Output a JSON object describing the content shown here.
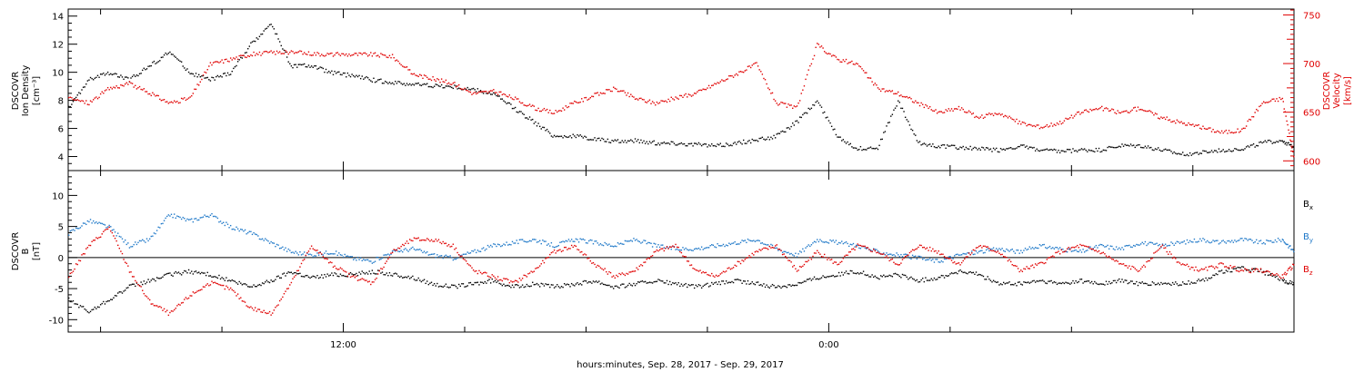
{
  "chart_data": [
    {
      "type": "scatter",
      "xlabel": "hours:minutes, Sep. 28, 2017 - Sep. 29, 2017",
      "x_ticks": [
        "12:00",
        "0:00"
      ],
      "x_hours_range": [
        -6.8,
        23.5
      ],
      "left_axis": {
        "label_lines": [
          "DSCOVR",
          "Ion Density",
          "[cm⁻³]"
        ],
        "ylim": [
          3,
          14.5
        ],
        "ticks": [
          "4",
          "6",
          "8",
          "10",
          "12",
          "14"
        ]
      },
      "right_axis": {
        "label_lines": [
          "DSCOVR",
          "Velocity",
          "[km/s]"
        ],
        "ylim": [
          590,
          756
        ],
        "ticks": [
          "600",
          "650",
          "700",
          "750"
        ],
        "color": "#e00000"
      },
      "series": [
        {
          "axis": "left",
          "color": "#000000",
          "x": [
            -6.8,
            -6.3,
            -5.8,
            -5.3,
            -4.8,
            -4.3,
            -3.8,
            -3.3,
            -2.8,
            -2.3,
            -1.8,
            -1.3,
            -0.8,
            -0.3,
            0.2,
            0.7,
            1.2,
            1.7,
            2.2,
            2.7,
            3.2,
            3.7,
            4.2,
            4.7,
            5.2,
            5.7,
            6.2,
            6.7,
            7.2,
            7.7,
            8.2,
            8.7,
            9.2,
            9.7,
            10.2,
            10.7,
            11.2,
            11.7,
            12.2,
            12.7,
            13.2,
            13.7,
            14.2,
            14.7,
            15.2,
            15.7,
            16.2,
            16.7,
            17.2,
            17.7,
            18.2,
            18.7,
            19.2,
            19.7,
            20.2,
            20.7,
            21.2,
            21.7,
            22.2,
            22.7,
            23.2,
            23.5
          ],
          "y": [
            7.5,
            9.5,
            10,
            9.5,
            10.5,
            11.5,
            10,
            9.5,
            10,
            12,
            13.5,
            10.5,
            10.5,
            10,
            9.8,
            9.5,
            9.3,
            9.2,
            9.1,
            9,
            8.8,
            8.5,
            7.5,
            6.5,
            5.5,
            5.5,
            5.3,
            5.1,
            5.2,
            5,
            5,
            4.9,
            4.8,
            5,
            5.2,
            5.5,
            6.5,
            8,
            5.5,
            4.6,
            4.7,
            8,
            5,
            4.8,
            4.7,
            4.6,
            4.5,
            4.8,
            4.5,
            4.4,
            4.5,
            4.5,
            4.8,
            4.8,
            4.5,
            4.2,
            4.3,
            4.5,
            4.6,
            5,
            5.2,
            4.6
          ]
        },
        {
          "axis": "right",
          "color": "#e00000",
          "x": [
            -6.8,
            -6.3,
            -5.8,
            -5.3,
            -4.8,
            -4.3,
            -3.8,
            -3.3,
            -2.8,
            -2.3,
            -1.8,
            -1.3,
            -0.8,
            -0.3,
            0.2,
            0.7,
            1.2,
            1.7,
            2.2,
            2.7,
            3.2,
            3.7,
            4.2,
            4.7,
            5.2,
            5.7,
            6.2,
            6.7,
            7.2,
            7.7,
            8.2,
            8.7,
            9.2,
            9.7,
            10.2,
            10.7,
            11.2,
            11.7,
            12.2,
            12.7,
            13.2,
            13.7,
            14.2,
            14.7,
            15.2,
            15.7,
            16.2,
            16.7,
            17.2,
            17.7,
            18.2,
            18.7,
            19.2,
            19.7,
            20.2,
            20.7,
            21.2,
            21.7,
            22.2,
            22.7,
            23.2,
            23.5
          ],
          "y": [
            665,
            660,
            675,
            680,
            670,
            660,
            665,
            700,
            705,
            710,
            712,
            712,
            711,
            710,
            710,
            710,
            708,
            690,
            685,
            680,
            670,
            672,
            665,
            655,
            650,
            660,
            668,
            675,
            665,
            660,
            665,
            670,
            680,
            690,
            700,
            660,
            655,
            720,
            705,
            700,
            675,
            670,
            660,
            650,
            655,
            645,
            650,
            640,
            635,
            640,
            650,
            655,
            650,
            655,
            645,
            640,
            635,
            630,
            632,
            660,
            665,
            600
          ]
        }
      ]
    },
    {
      "type": "scatter",
      "left_axis": {
        "label_lines": [
          "DSCOVR",
          "B",
          "[nT]"
        ],
        "ylim": [
          -12,
          14
        ],
        "ticks": [
          "10",
          "5",
          "0",
          "-5",
          "-10"
        ]
      },
      "legend": [
        {
          "name": "B",
          "sub": "x",
          "color": "#000000"
        },
        {
          "name": "B",
          "sub": "y",
          "color": "#1e78c8"
        },
        {
          "name": "B",
          "sub": "z",
          "color": "#e00000"
        }
      ],
      "series": [
        {
          "name": "Bx",
          "color": "#000000",
          "x": [
            -6.8,
            -6.3,
            -5.8,
            -5.3,
            -4.8,
            -4.3,
            -3.8,
            -3.3,
            -2.8,
            -2.3,
            -1.8,
            -1.3,
            -0.8,
            -0.3,
            0.2,
            0.7,
            1.2,
            1.7,
            2.2,
            2.7,
            3.2,
            3.7,
            4.2,
            4.7,
            5.2,
            5.7,
            6.2,
            6.7,
            7.2,
            7.7,
            8.2,
            8.7,
            9.2,
            9.7,
            10.2,
            10.7,
            11.2,
            11.7,
            12.2,
            12.7,
            13.2,
            13.7,
            14.2,
            14.7,
            15.2,
            15.7,
            16.2,
            16.7,
            17.2,
            17.7,
            18.2,
            18.7,
            19.2,
            19.7,
            20.2,
            20.7,
            21.2,
            21.7,
            22.2,
            22.7,
            23.2,
            23.5
          ],
          "y": [
            -6,
            -8,
            -6,
            -4,
            -3,
            -2,
            -1.5,
            -2,
            -3,
            -4,
            -3,
            -1.5,
            -2.5,
            -2,
            -2,
            -1.5,
            -2,
            -2.5,
            -3.5,
            -4,
            -3.5,
            -3,
            -4,
            -3.5,
            -4,
            -3.5,
            -3,
            -4,
            -3.5,
            -3,
            -3.5,
            -4,
            -3.5,
            -3,
            -3.5,
            -4,
            -3.5,
            -2.5,
            -2,
            -1.5,
            -2.5,
            -2,
            -3,
            -2.5,
            -1.5,
            -2,
            -3.5,
            -3.5,
            -3,
            -3.5,
            -3,
            -3.5,
            -3,
            -3.5,
            -3.5,
            -3.5,
            -3,
            -1.5,
            -1,
            -1.5,
            -3,
            -3.5
          ]
        },
        {
          "name": "By",
          "color": "#1e78c8",
          "x": [
            -6.8,
            -6.3,
            -5.8,
            -5.3,
            -4.8,
            -4.3,
            -3.8,
            -3.3,
            -2.8,
            -2.3,
            -1.8,
            -1.3,
            -0.8,
            -0.3,
            0.2,
            0.7,
            1.2,
            1.7,
            2.2,
            2.7,
            3.2,
            3.7,
            4.2,
            4.7,
            5.2,
            5.7,
            6.2,
            6.7,
            7.2,
            7.7,
            8.2,
            8.7,
            9.2,
            9.7,
            10.2,
            10.7,
            11.2,
            11.7,
            12.2,
            12.7,
            13.2,
            13.7,
            14.2,
            14.7,
            15.2,
            15.7,
            16.2,
            16.7,
            17.2,
            17.7,
            18.2,
            18.7,
            19.2,
            19.7,
            20.2,
            20.7,
            21.2,
            21.7,
            22.2,
            22.7,
            23.2,
            23.5
          ],
          "y": [
            4,
            6,
            5,
            2,
            3,
            7,
            6,
            7,
            5,
            4,
            2.5,
            1,
            0.5,
            1,
            0,
            -0.5,
            1,
            1.5,
            0.5,
            0,
            1,
            2,
            2.5,
            3,
            2,
            3,
            2.5,
            2,
            3,
            2,
            1.5,
            1.5,
            2,
            2.5,
            3,
            1.5,
            0.5,
            3,
            2.5,
            2,
            1,
            0.5,
            0,
            -0.5,
            0.5,
            1,
            1.5,
            1,
            2,
            1.5,
            1,
            2,
            1.5,
            2.5,
            2,
            2.5,
            3,
            2.5,
            3,
            2.5,
            3,
            1
          ]
        },
        {
          "name": "Bz",
          "color": "#e00000",
          "x": [
            -6.8,
            -6.3,
            -5.8,
            -5.3,
            -4.8,
            -4.3,
            -3.8,
            -3.3,
            -2.8,
            -2.3,
            -1.8,
            -1.3,
            -0.8,
            -0.3,
            0.2,
            0.7,
            1.2,
            1.7,
            2.2,
            2.7,
            3.2,
            3.7,
            4.2,
            4.7,
            5.2,
            5.7,
            6.2,
            6.7,
            7.2,
            7.7,
            8.2,
            8.7,
            9.2,
            9.7,
            10.2,
            10.7,
            11.2,
            11.7,
            12.2,
            12.7,
            13.2,
            13.7,
            14.2,
            14.7,
            15.2,
            15.7,
            16.2,
            16.7,
            17.2,
            17.7,
            18.2,
            18.7,
            19.2,
            19.7,
            20.2,
            20.7,
            21.2,
            21.7,
            22.2,
            22.7,
            23.2,
            23.5
          ],
          "y": [
            -3,
            2,
            5,
            -2,
            -7,
            -9,
            -6,
            -4,
            -5,
            -8,
            -9,
            -4,
            2,
            -1,
            -3,
            -4,
            1,
            3,
            3,
            2,
            -2,
            -3,
            -4,
            -2,
            1,
            2,
            -1,
            -3,
            -2,
            1,
            2,
            -2,
            -3,
            -1,
            1,
            2,
            -2,
            1,
            -1,
            2,
            1,
            -1,
            2,
            1,
            -1,
            2,
            1,
            -2,
            -1,
            1,
            2,
            1,
            -1,
            -2,
            2,
            -1,
            -2,
            -1,
            -2,
            -2,
            -3,
            -1
          ]
        }
      ]
    }
  ]
}
